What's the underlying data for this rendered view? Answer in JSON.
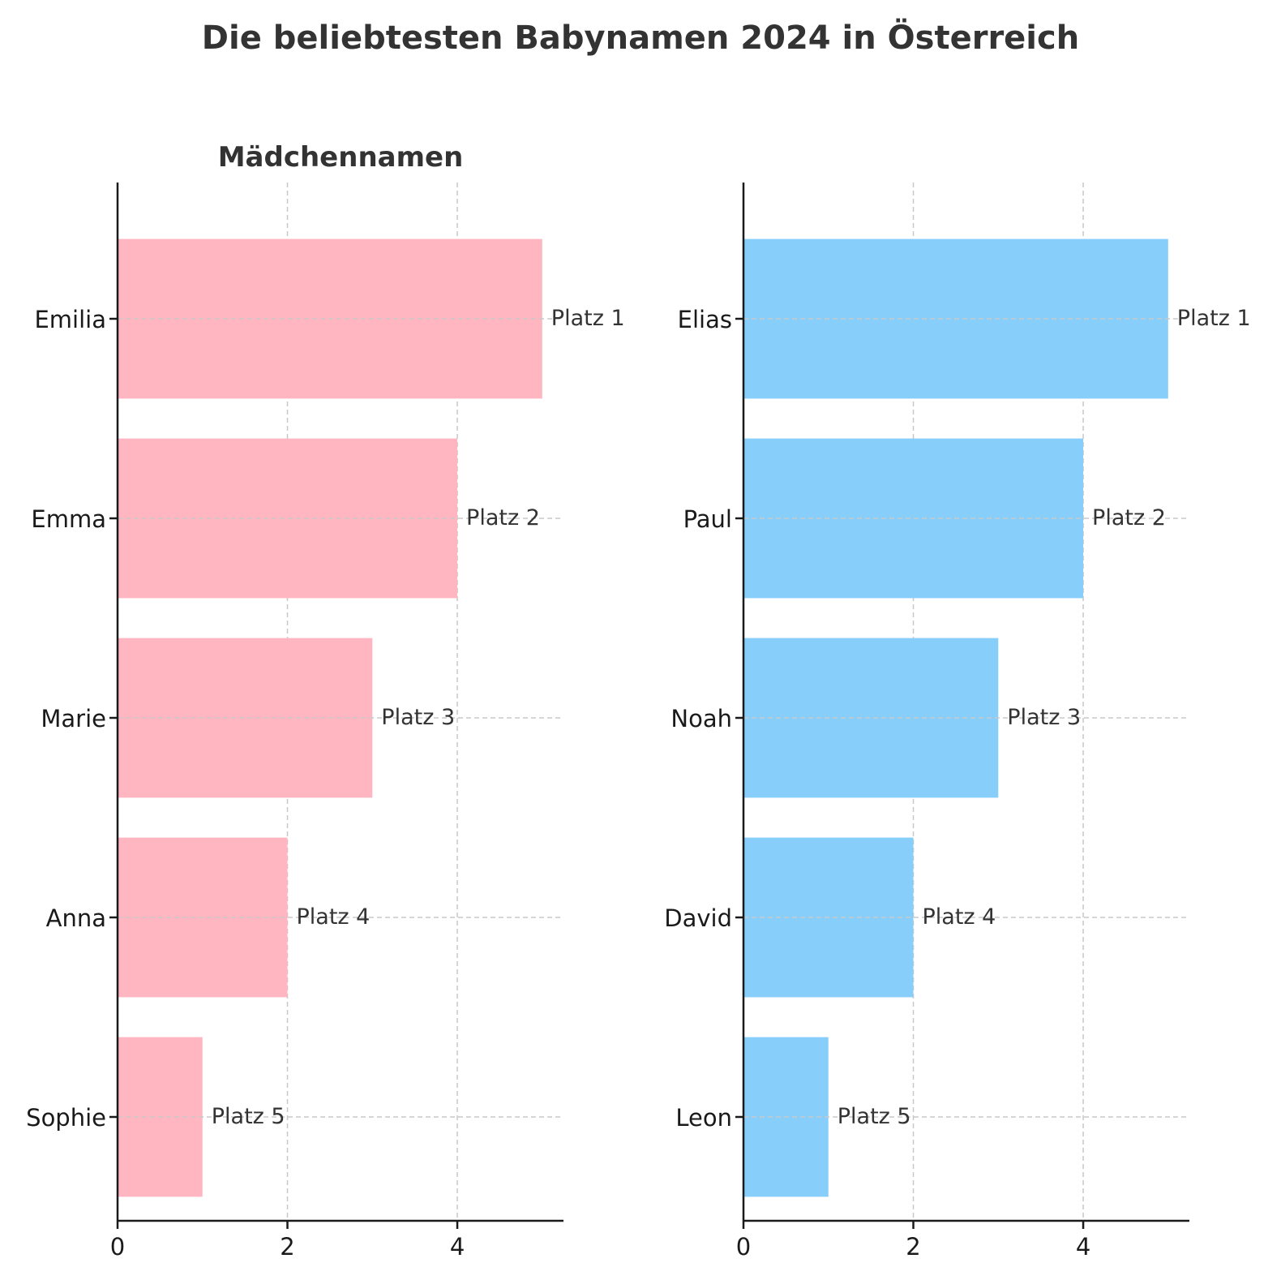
{
  "title": "Die beliebtesten Babynamen 2024 in Österreich",
  "chart_data": [
    {
      "type": "bar",
      "orientation": "horizontal",
      "title": "Mädchennamen",
      "categories": [
        "Emilia",
        "Emma",
        "Marie",
        "Anna",
        "Sophie"
      ],
      "values": [
        5,
        4,
        3,
        2,
        1
      ],
      "labels": [
        "Platz 1",
        "Platz 2",
        "Platz 3",
        "Platz 4",
        "Platz 5"
      ],
      "xticks": [
        "0",
        "2",
        "4"
      ],
      "xlim": [
        0,
        5.25
      ],
      "color": "#FFB6C1",
      "grid": true,
      "xlabel": "",
      "ylabel": ""
    },
    {
      "type": "bar",
      "orientation": "horizontal",
      "title": "",
      "categories": [
        "Elias",
        "Paul",
        "Noah",
        "David",
        "Leon"
      ],
      "values": [
        5,
        4,
        3,
        2,
        1
      ],
      "labels": [
        "Platz 1",
        "Platz 2",
        "Platz 3",
        "Platz 4",
        "Platz 5"
      ],
      "xticks": [
        "0",
        "2",
        "4"
      ],
      "xlim": [
        0,
        5.25
      ],
      "color": "#87CEFA",
      "grid": true,
      "xlabel": "",
      "ylabel": ""
    }
  ]
}
